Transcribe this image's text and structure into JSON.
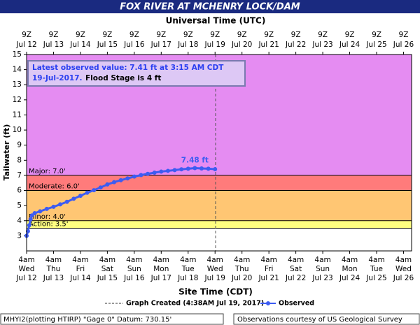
{
  "chart_data": {
    "type": "line",
    "title": "FOX RIVER AT MCHENRY LOCK/DAM",
    "x2_axis_label": "Universal Time (UTC)",
    "x_axis_label": "Site Time (CDT)",
    "y_axis_label": "Tailwater (ft)",
    "xlim": [
      0,
      14.3
    ],
    "ylim": [
      2,
      15
    ],
    "yticks": [
      3,
      4,
      5,
      6,
      7,
      8,
      9,
      10,
      11,
      12,
      13,
      14,
      15
    ],
    "xticks": [
      {
        "value": 0,
        "label": "4am",
        "day": "Wed",
        "date": "Jul 12"
      },
      {
        "value": 1,
        "label": "4am",
        "day": "Thu",
        "date": "Jul 13"
      },
      {
        "value": 2,
        "label": "4am",
        "day": "Fri",
        "date": "Jul 14"
      },
      {
        "value": 3,
        "label": "4am",
        "day": "Sat",
        "date": "Jul 15"
      },
      {
        "value": 4,
        "label": "4am",
        "day": "Sun",
        "date": "Jul 16"
      },
      {
        "value": 5,
        "label": "4am",
        "day": "Mon",
        "date": "Jul 17"
      },
      {
        "value": 6,
        "label": "4am",
        "day": "Tue",
        "date": "Jul 18"
      },
      {
        "value": 7,
        "label": "4am",
        "day": "Wed",
        "date": "Jul 19"
      },
      {
        "value": 8,
        "label": "4am",
        "day": "Thu",
        "date": "Jul 20"
      },
      {
        "value": 9,
        "label": "4am",
        "day": "Fri",
        "date": "Jul 21"
      },
      {
        "value": 10,
        "label": "4am",
        "day": "Sat",
        "date": "Jul 22"
      },
      {
        "value": 11,
        "label": "4am",
        "day": "Sun",
        "date": "Jul 23"
      },
      {
        "value": 12,
        "label": "4am",
        "day": "Mon",
        "date": "Jul 24"
      },
      {
        "value": 13,
        "label": "4am",
        "day": "Tue",
        "date": "Jul 25"
      },
      {
        "value": 14,
        "label": "4am",
        "day": "Wed",
        "date": "Jul 26"
      }
    ],
    "x2ticks": [
      {
        "value": 0,
        "label": "9Z",
        "date": "Jul 12"
      },
      {
        "value": 1,
        "label": "9Z",
        "date": "Jul 13"
      },
      {
        "value": 2,
        "label": "9Z",
        "date": "Jul 14"
      },
      {
        "value": 3,
        "label": "9Z",
        "date": "Jul 15"
      },
      {
        "value": 4,
        "label": "9Z",
        "date": "Jul 16"
      },
      {
        "value": 5,
        "label": "9Z",
        "date": "Jul 17"
      },
      {
        "value": 6,
        "label": "9Z",
        "date": "Jul 18"
      },
      {
        "value": 7,
        "label": "9Z",
        "date": "Jul 19"
      },
      {
        "value": 8,
        "label": "9Z",
        "date": "Jul 20"
      },
      {
        "value": 9,
        "label": "9Z",
        "date": "Jul 21"
      },
      {
        "value": 10,
        "label": "9Z",
        "date": "Jul 22"
      },
      {
        "value": 11,
        "label": "9Z",
        "date": "Jul 23"
      },
      {
        "value": 12,
        "label": "9Z",
        "date": "Jul 24"
      },
      {
        "value": 13,
        "label": "9Z",
        "date": "Jul 25"
      },
      {
        "value": 14,
        "label": "9Z",
        "date": "Jul 26"
      }
    ],
    "thresholds": [
      {
        "value": 3.5,
        "label": "Action: 3.5'",
        "color": "#ffff80"
      },
      {
        "value": 4.0,
        "label": "Minor: 4.0'",
        "color": "#ffc673"
      },
      {
        "value": 6.0,
        "label": "Moderate: 6.0'",
        "color": "#ff7b7b"
      },
      {
        "value": 7.0,
        "label": "Major: 7.0'",
        "color": "#e58cf2"
      }
    ],
    "series": [
      {
        "name": "Observed",
        "color": "#3d5cf2",
        "x": [
          0,
          0.05,
          0.1,
          0.15,
          0.2,
          0.3,
          0.5,
          0.75,
          1,
          1.25,
          1.5,
          1.75,
          2,
          2.25,
          2.5,
          2.75,
          3,
          3.25,
          3.5,
          3.75,
          4,
          4.25,
          4.5,
          4.75,
          5,
          5.25,
          5.5,
          5.75,
          6,
          6.25,
          6.5,
          6.75,
          7
        ],
        "values": [
          3.0,
          3.3,
          3.7,
          4.1,
          4.35,
          4.5,
          4.62,
          4.78,
          4.92,
          5.08,
          5.25,
          5.45,
          5.65,
          5.85,
          6.02,
          6.2,
          6.4,
          6.55,
          6.68,
          6.8,
          6.92,
          7.02,
          7.1,
          7.18,
          7.25,
          7.3,
          7.35,
          7.4,
          7.44,
          7.48,
          7.46,
          7.44,
          7.41
        ]
      }
    ],
    "peak_label": {
      "text": "7.48 ft",
      "x": 6.25,
      "value": 7.48
    },
    "graph_created": {
      "label": "Graph Created (4:38AM Jul 19, 2017)",
      "x": 7.02
    },
    "annotation": {
      "line1": "Latest observed value: 7.41 ft at 3:15 AM CDT",
      "line2_date": "19-Jul-2017.",
      "line2_note": "Flood Stage is 4 ft"
    },
    "footer_left": "MHYI2(plotting HTIRP) \"Gage 0\" Datum: 730.15'",
    "footer_right": "Observations courtesy of US Geological Survey"
  }
}
